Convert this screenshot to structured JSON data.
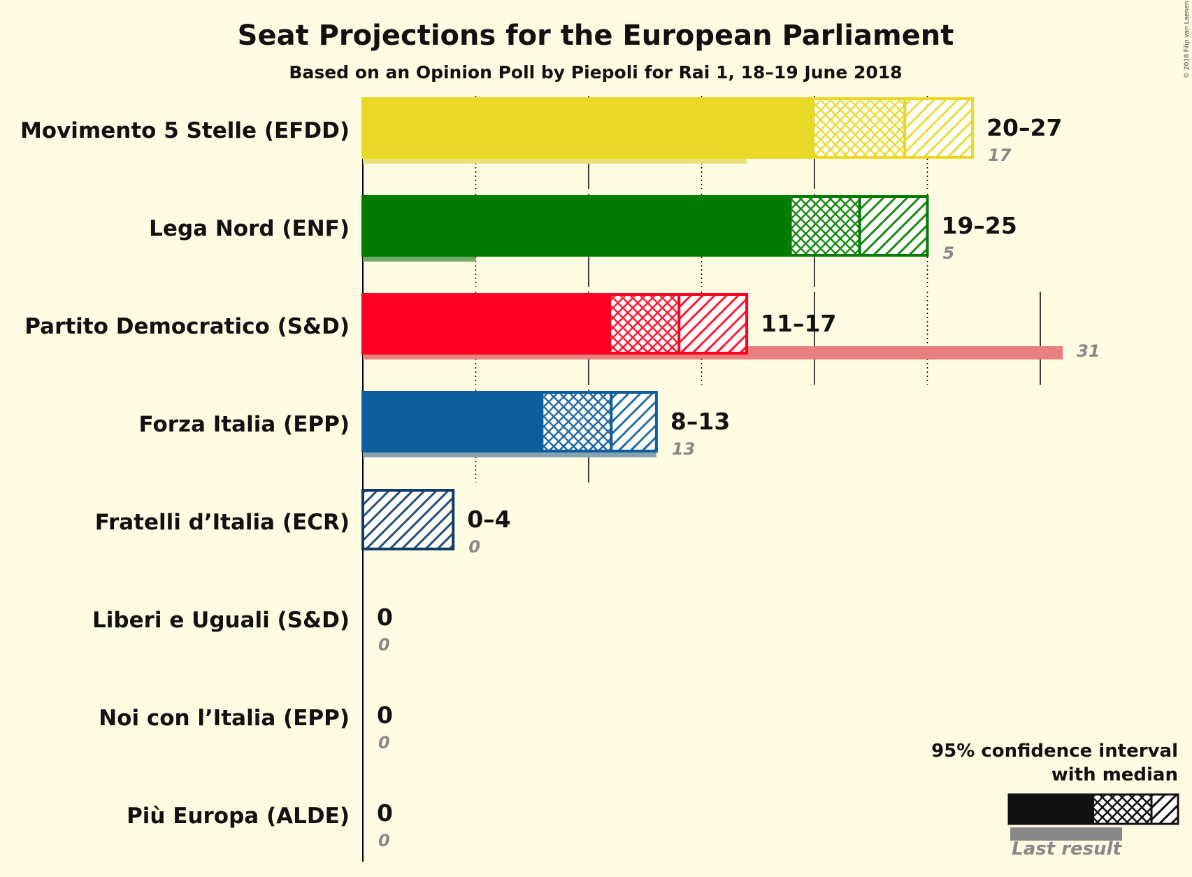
{
  "chart_data": {
    "type": "bar",
    "title": "Seat Projections for the European Parliament",
    "subtitle": "Based on an Opinion Poll by Piepoli for Rai 1, 18–19 June 2018",
    "copyright": "© 2018 Filip van Laenen",
    "legend": {
      "line1": "95% confidence interval",
      "line2": "with median",
      "last_result": "Last result",
      "placement": "bottom-right"
    },
    "gridlines": [
      5,
      10,
      15,
      20,
      25,
      30
    ],
    "parties": [
      {
        "name": "Movimento 5 Stelle (EFDD)",
        "low": 20,
        "median": 24,
        "high": 27,
        "range_label": "20–27",
        "last": 17,
        "last_label": "17",
        "color": "#e9d826",
        "last_color": "#ebdf7a"
      },
      {
        "name": "Lega Nord (ENF)",
        "low": 19,
        "median": 22,
        "high": 25,
        "range_label": "19–25",
        "last": 5,
        "last_label": "5",
        "color": "#007d00",
        "last_color": "#74a866"
      },
      {
        "name": "Partito Democratico (S&D)",
        "low": 11,
        "median": 14,
        "high": 17,
        "range_label": "11–17",
        "last": 31,
        "last_label": "31",
        "color": "#ff0022",
        "last_color": "#e98080"
      },
      {
        "name": "Forza Italia (EPP)",
        "low": 8,
        "median": 11,
        "high": 13,
        "range_label": "8–13",
        "last": 13,
        "last_label": "13",
        "color": "#0e5d9c",
        "last_color": "#86a2b0"
      },
      {
        "name": "Fratelli d’Italia (ECR)",
        "low": 0,
        "median": 0,
        "high": 4,
        "range_label": "0–4",
        "last": 0,
        "last_label": "0",
        "color": "#0f3c66",
        "last_color": "#7f8f9d"
      },
      {
        "name": "Liberi e Uguali (S&D)",
        "low": 0,
        "median": 0,
        "high": 0,
        "range_label": "0",
        "last": 0,
        "last_label": "0",
        "color": "#c00000",
        "last_color": "#999999"
      },
      {
        "name": "Noi con l’Italia (EPP)",
        "low": 0,
        "median": 0,
        "high": 0,
        "range_label": "0",
        "last": 0,
        "last_label": "0",
        "color": "#0e5d9c",
        "last_color": "#999999"
      },
      {
        "name": "Più Europa (ALDE)",
        "low": 0,
        "median": 0,
        "high": 0,
        "range_label": "0",
        "last": 0,
        "last_label": "0",
        "color": "#ffd700",
        "last_color": "#999999"
      }
    ]
  }
}
